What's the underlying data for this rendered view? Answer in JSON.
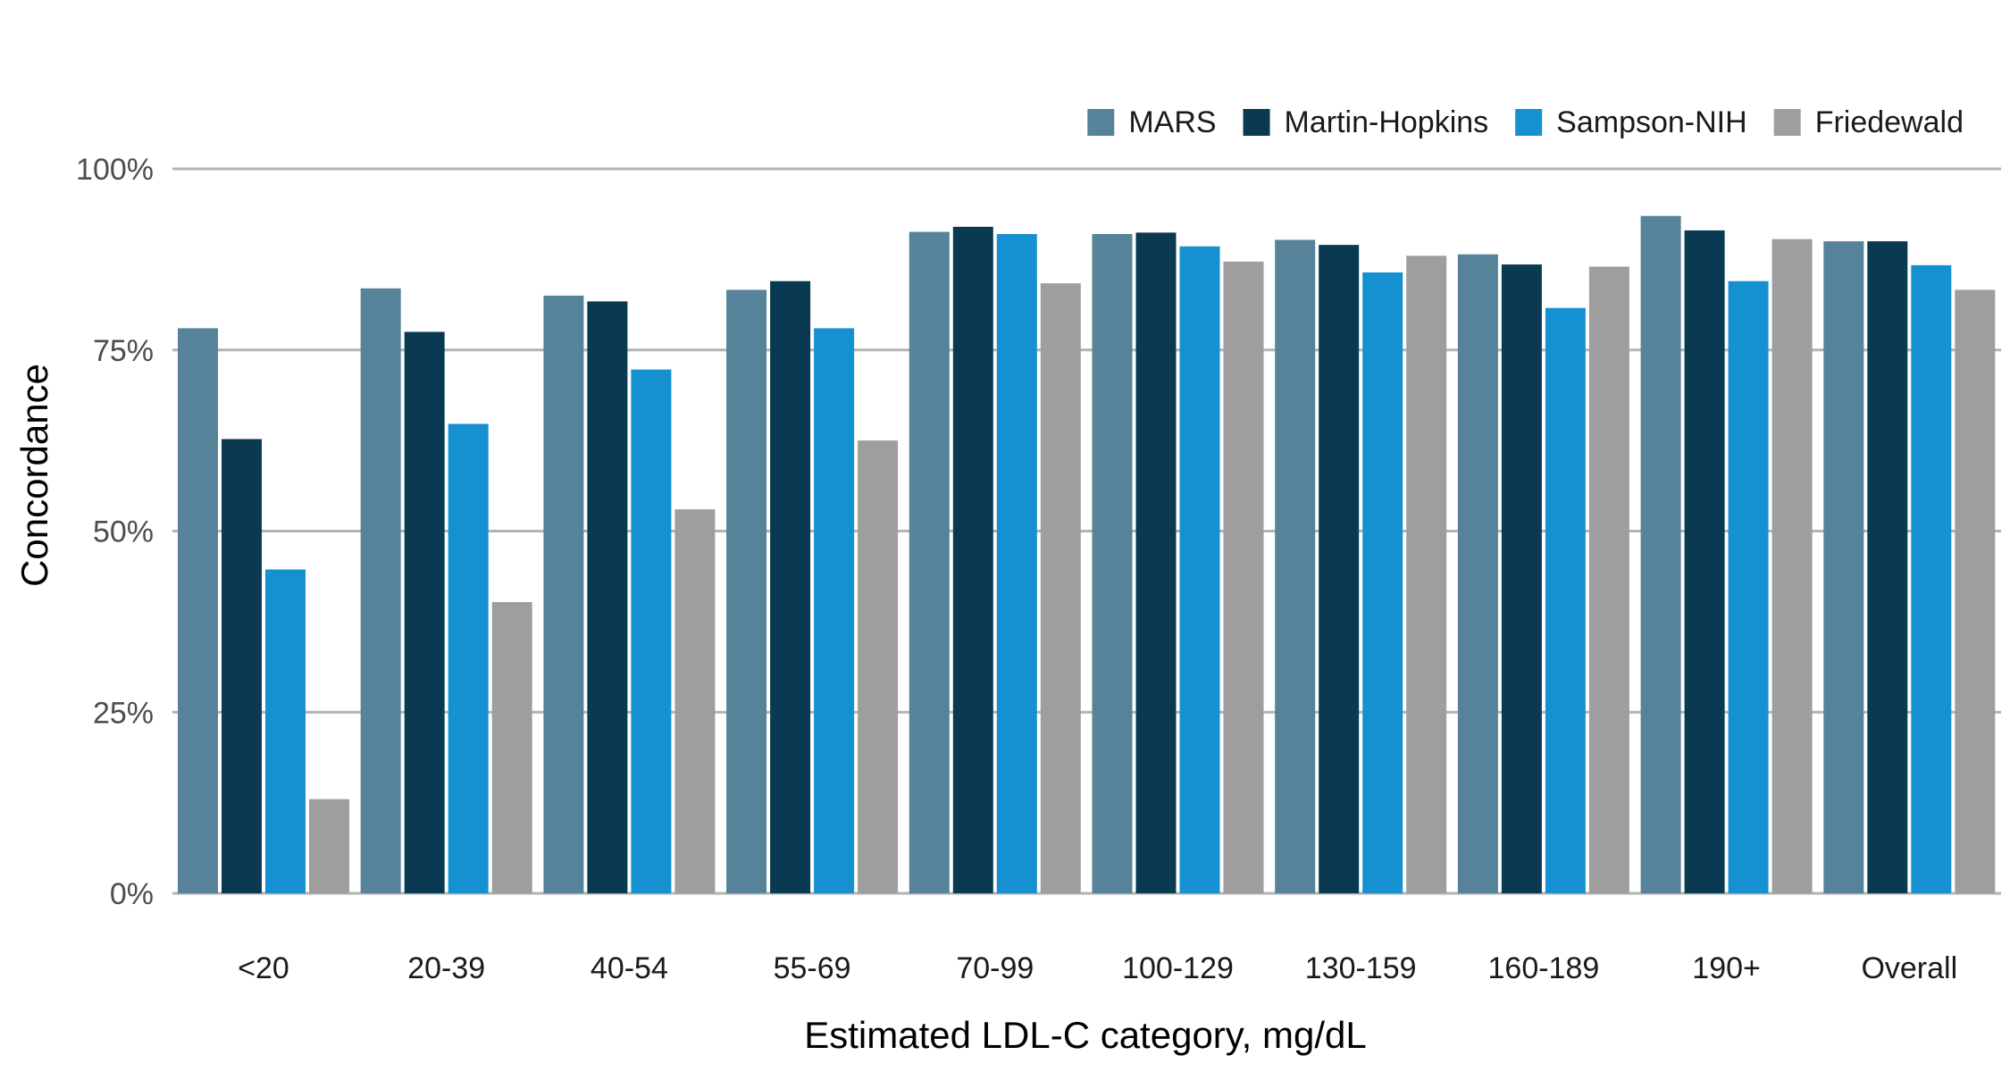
{
  "chart_data": {
    "type": "bar",
    "title": "",
    "xlabel": "Estimated LDL-C category, mg/dL",
    "ylabel": "Concordance",
    "ylim": [
      0,
      100
    ],
    "yticks": [
      "0%",
      "25%",
      "50%",
      "75%",
      "100%"
    ],
    "ytick_values": [
      0,
      25,
      50,
      75,
      100
    ],
    "grid": true,
    "legend_position": "top-right",
    "categories": [
      "<20",
      "20-39",
      "40-54",
      "55-69",
      "70-99",
      "100-129",
      "130-159",
      "160-189",
      "190+",
      "Overall"
    ],
    "series": [
      {
        "name": "MARS",
        "color": "#56829a",
        "values": [
          78,
          83.5,
          82.5,
          83.3,
          91.3,
          91,
          90.2,
          88.2,
          93.5,
          90
        ]
      },
      {
        "name": "Martin-Hopkins",
        "color": "#0a3a52",
        "values": [
          62.7,
          77.5,
          81.7,
          84.5,
          92,
          91.2,
          89.5,
          86.8,
          91.5,
          90
        ]
      },
      {
        "name": "Sampson-NIH",
        "color": "#1591d2",
        "values": [
          44.7,
          64.8,
          72.3,
          78,
          91,
          89.3,
          85.7,
          80.8,
          84.5,
          86.7
        ]
      },
      {
        "name": "Friedewald",
        "color": "#9e9e9e",
        "values": [
          13,
          40.2,
          53,
          62.5,
          84.2,
          87.2,
          88,
          86.5,
          90.3,
          83.3
        ]
      }
    ]
  }
}
